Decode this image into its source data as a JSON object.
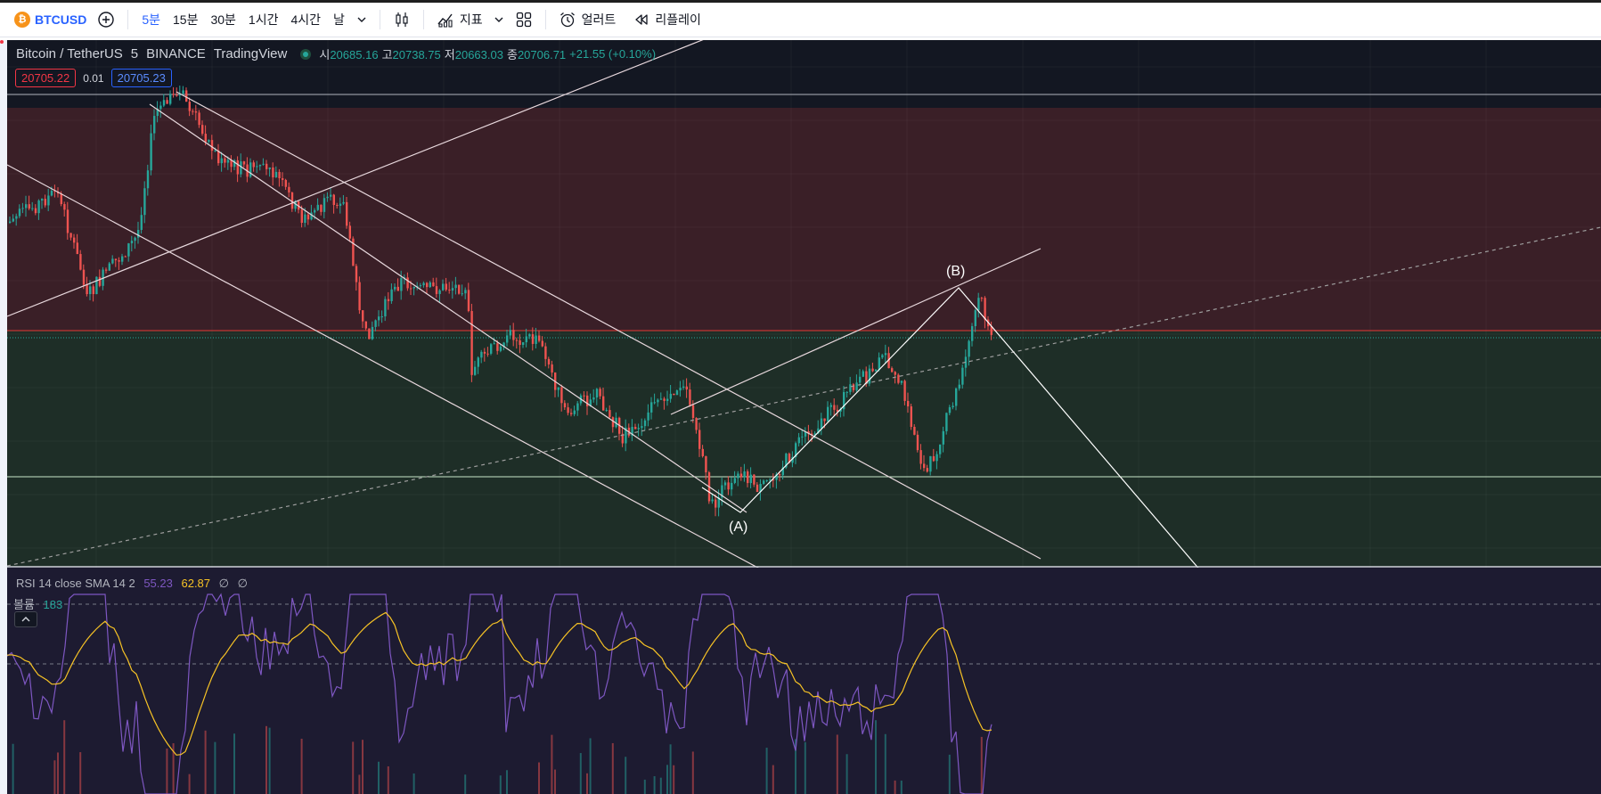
{
  "toolbar": {
    "symbol": "BTCUSD",
    "symbol_logo": "₿",
    "timeframes": [
      "5분",
      "15분",
      "30분",
      "1시간",
      "4시간",
      "날"
    ],
    "active_timeframe": "5분",
    "indicators_label": "지표",
    "alert_label": "얼러트",
    "replay_label": "리플레이",
    "icons": [
      "add-symbol-icon",
      "chevron-down-icon",
      "candles-icon",
      "indicators-icon",
      "templates-icon",
      "alarm-icon",
      "replay-icon"
    ]
  },
  "legend": {
    "pair": "Bitcoin / TetherUS",
    "interval": "5",
    "exchange": "BINANCE",
    "source": "TradingView",
    "open_label": "시",
    "open": "20685.16",
    "high_label": "고",
    "high": "20738.75",
    "low_label": "저",
    "low": "20663.03",
    "close_label": "종",
    "close": "20706.71",
    "change": "+21.55 (+0.10%)"
  },
  "prices": {
    "sell": "20705.22",
    "spread": "0.01",
    "buy": "20705.23"
  },
  "waves": {
    "a": "(A)",
    "b": "(B)"
  },
  "rsi": {
    "label": "RSI 14 close SMA 14 2",
    "value": "55.23",
    "sma": "62.87",
    "na1": "∅",
    "na2": "∅"
  },
  "volume": {
    "label": "볼륨",
    "value": "183"
  },
  "colors": {
    "up": "#26a69a",
    "down": "#ef5350",
    "resistance_zone": "#3a1f27",
    "support_zone": "#1e2e27",
    "rsi": "#7e57c2",
    "rsi_sma": "#f7c325"
  }
}
